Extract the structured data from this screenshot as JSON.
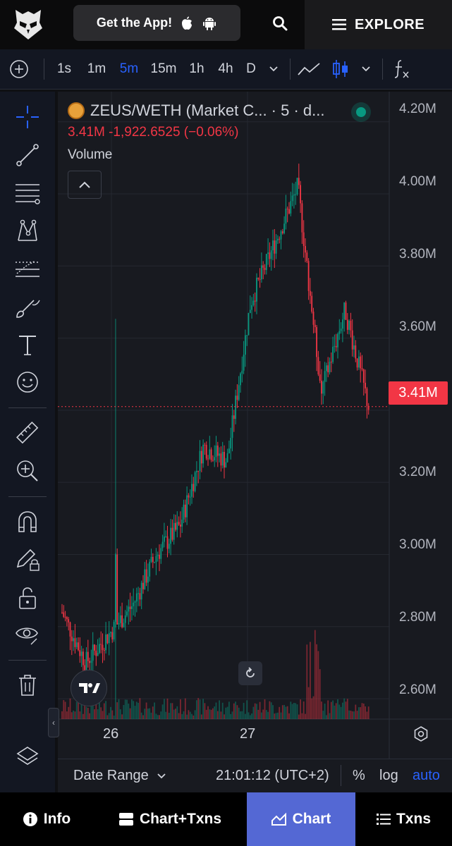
{
  "header": {
    "get_app_label": "Get the App!",
    "explore_label": "EXPLORE"
  },
  "toolbar": {
    "intervals": [
      "1s",
      "1m",
      "5m",
      "15m",
      "1h",
      "4h",
      "D"
    ],
    "active_interval": "5m"
  },
  "chart": {
    "symbol_title": "ZEUS/WETH (Market C... · 5 · d...",
    "ohlc_line": "3.41M  -1,922.6525 (−0.06%)",
    "volume_label": "Volume",
    "last_price_tag": "3.41M",
    "y_ticks": [
      "4.20M",
      "4.00M",
      "3.80M",
      "3.60M",
      "3.40M",
      "3.20M",
      "3.00M",
      "2.80M",
      "2.60M"
    ],
    "x_ticks": [
      "26",
      "27"
    ],
    "colors": {
      "up": "#089981",
      "down": "#f23645",
      "accent": "#2962ff"
    }
  },
  "chart_data": {
    "type": "line",
    "title": "ZEUS/WETH (Market C... · 5 · d...",
    "xlabel": "",
    "ylabel": "",
    "ylim": [
      2.52,
      4.26
    ],
    "categories": [
      "26",
      "",
      "",
      "",
      "",
      "",
      "",
      "27",
      "",
      "",
      "",
      "",
      "",
      ""
    ],
    "series": [
      {
        "name": "",
        "values": [
          2.84,
          2.7,
          2.78,
          2.86,
          3.0,
          3.08,
          3.3,
          3.26,
          3.7,
          3.86,
          4.02,
          3.45,
          3.68,
          3.41
        ]
      }
    ]
  },
  "bottom_controls": {
    "date_range": "Date Range",
    "time": "21:01:12 (UTC+2)",
    "percent": "%",
    "log": "log",
    "auto": "auto"
  },
  "bottom_nav": {
    "info": "Info",
    "chart_txns": "Chart+Txns",
    "chart": "Chart",
    "txns": "Txns"
  }
}
